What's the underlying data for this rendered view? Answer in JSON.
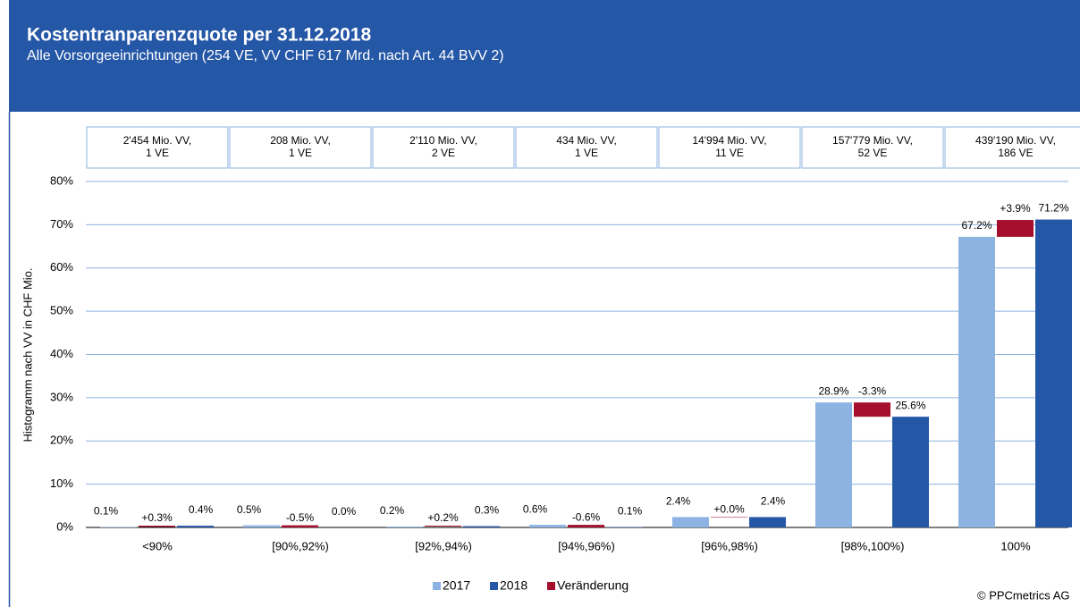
{
  "chart_data": {
    "type": "bar",
    "title": "Kostentranparenzquote per 31.12.2018",
    "subtitle": "Alle Vorsorgeeinrichtungen (254 VE, VV CHF 617 Mrd. nach Art. 44 BVV 2)",
    "y_label": "Histogramm nach VV in CHF Mio.",
    "footer": "© PPCmetrics AG",
    "categories": [
      "<90%",
      "[90%,92%)",
      "[92%,94%)",
      "[94%,96%)",
      "[96%,98%)",
      "[98%,100%)",
      "100%"
    ],
    "annotations": [
      [
        "2'454 Mio. VV,",
        "1 VE"
      ],
      [
        "208 Mio. VV,",
        "1 VE"
      ],
      [
        "2'110 Mio. VV,",
        "2 VE"
      ],
      [
        "434 Mio. VV,",
        "1 VE"
      ],
      [
        "14'994 Mio. VV,",
        "11 VE"
      ],
      [
        "157'779 Mio. VV,",
        "52 VE"
      ],
      [
        "439'190 Mio. VV,",
        "186 VE"
      ]
    ],
    "series": [
      {
        "name": "2017",
        "color": "#8db3e2",
        "values": [
          0.1,
          0.5,
          0.2,
          0.6,
          2.4,
          28.9,
          67.2
        ],
        "value_labels": [
          "0.1%",
          "0.5%",
          "0.2%",
          "0.6%",
          "2.4%",
          "28.9%",
          "67.2%"
        ]
      },
      {
        "name": "2018",
        "color": "#2557a7",
        "values": [
          0.4,
          0.0,
          0.3,
          0.1,
          2.4,
          25.6,
          71.2
        ],
        "value_labels": [
          "0.4%",
          "0.0%",
          "0.3%",
          "0.1%",
          "2.4%",
          "25.6%",
          "71.2%"
        ]
      },
      {
        "name": "Veränderung",
        "color": "#a50f2d",
        "values": [
          0.3,
          -0.5,
          0.2,
          -0.6,
          0.0,
          -3.3,
          3.9
        ],
        "value_labels": [
          "+0.3%",
          "-0.5%",
          "+0.2%",
          "-0.6%",
          "+0.0%",
          "-3.3%",
          "+3.9%"
        ]
      }
    ],
    "ylim": [
      0,
      80
    ],
    "yticks": [
      {
        "value": 0,
        "label": "0%"
      },
      {
        "value": 10,
        "label": "10%"
      },
      {
        "value": 20,
        "label": "20%"
      },
      {
        "value": 30,
        "label": "30%"
      },
      {
        "value": 40,
        "label": "40%"
      },
      {
        "value": 50,
        "label": "50%"
      },
      {
        "value": 60,
        "label": "60%"
      },
      {
        "value": 70,
        "label": "70%"
      },
      {
        "value": 80,
        "label": "80%"
      }
    ],
    "grid": true
  }
}
